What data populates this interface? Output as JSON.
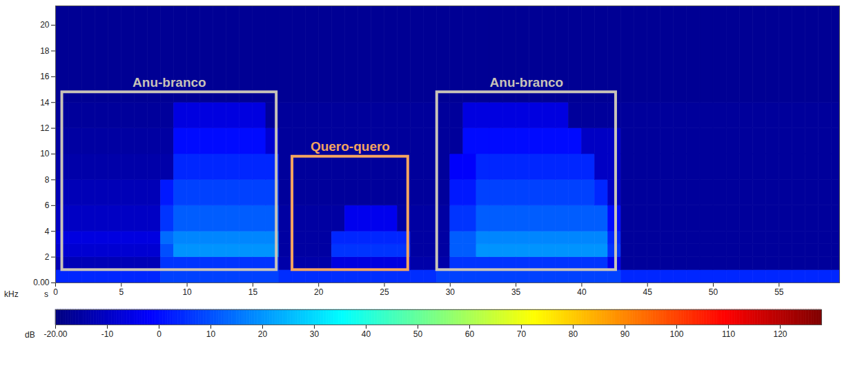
{
  "chart_data": {
    "type": "heatmap",
    "xlabel": "s",
    "ylabel": "kHz",
    "xlim": [
      0,
      59.6
    ],
    "xticks": [
      0,
      5,
      10,
      15,
      20,
      25,
      30,
      35,
      40,
      45,
      50,
      55
    ],
    "ylim": [
      0,
      21.5
    ],
    "yticks": [
      {
        "value": 0,
        "label": "0.00"
      },
      2,
      4,
      6,
      8,
      10,
      12,
      14,
      16,
      18,
      20
    ],
    "time_bins": [
      0,
      1,
      2,
      3,
      4,
      5,
      6,
      7,
      8,
      9,
      10,
      11,
      12,
      13,
      14,
      15,
      16,
      17,
      18,
      19,
      20,
      21,
      22,
      23,
      24,
      25,
      26,
      27,
      28,
      29,
      30,
      31,
      32,
      33,
      34,
      35,
      36,
      37,
      38,
      39,
      40,
      41,
      42,
      43,
      44,
      45,
      46,
      47,
      48,
      49,
      50,
      51,
      52,
      53,
      54,
      55,
      56,
      57,
      58,
      59,
      60
    ],
    "frequency_bins": [
      0,
      1,
      2,
      3,
      4,
      6,
      8,
      10,
      12,
      14,
      21.5
    ],
    "cells": [
      [
        4,
        4,
        4,
        4,
        4,
        4,
        4,
        4,
        8,
        8,
        8,
        8,
        8,
        8,
        8,
        8,
        8,
        5,
        5,
        5,
        5,
        5,
        5,
        5,
        5,
        5,
        5,
        5,
        5,
        8,
        8,
        8,
        8,
        8,
        8,
        8,
        8,
        8,
        8,
        8,
        8,
        8,
        8,
        4,
        4,
        4,
        4,
        4,
        4,
        4,
        4,
        4,
        4,
        4,
        4,
        4,
        4,
        4,
        4,
        4
      ],
      [
        -12,
        -12,
        -12,
        -12,
        -12,
        -12,
        -12,
        -12,
        6,
        6,
        6,
        6,
        6,
        6,
        6,
        6,
        6,
        -14,
        -14,
        -14,
        -14,
        -6,
        -6,
        -6,
        -6,
        -6,
        -6,
        -14,
        -14,
        -14,
        6,
        6,
        6,
        6,
        6,
        6,
        6,
        6,
        6,
        6,
        6,
        6,
        -4,
        -16,
        -16,
        -16,
        -16,
        -16,
        -16,
        -16,
        -16,
        -16,
        -16,
        -16,
        -16,
        -16,
        -16,
        -16,
        -16,
        -16
      ],
      [
        -8,
        -8,
        -8,
        -8,
        -8,
        -8,
        -8,
        -8,
        10,
        20,
        20,
        20,
        20,
        20,
        20,
        20,
        20,
        -15,
        -15,
        -15,
        -15,
        6,
        6,
        6,
        6,
        6,
        6,
        -15,
        -15,
        -15,
        12,
        12,
        20,
        20,
        20,
        20,
        20,
        20,
        20,
        20,
        20,
        20,
        6,
        -16,
        -16,
        -16,
        -16,
        -16,
        -16,
        -16,
        -16,
        -16,
        -16,
        -16,
        -16,
        -16,
        -16,
        -16,
        -16,
        -16
      ],
      [
        -6,
        -6,
        -6,
        -6,
        -6,
        -6,
        -6,
        -6,
        14,
        18,
        18,
        18,
        18,
        18,
        18,
        18,
        18,
        -15,
        -15,
        -15,
        -15,
        4,
        4,
        4,
        4,
        4,
        4,
        -15,
        -15,
        -15,
        12,
        12,
        18,
        18,
        18,
        18,
        18,
        18,
        18,
        18,
        18,
        18,
        4,
        -16,
        -16,
        -16,
        -16,
        -16,
        -16,
        -16,
        -16,
        -16,
        -16,
        -16,
        -16,
        -16,
        -16,
        -16,
        -16,
        -16
      ],
      [
        -10,
        -10,
        -10,
        -10,
        -10,
        -10,
        -10,
        -10,
        6,
        12,
        12,
        12,
        12,
        12,
        12,
        12,
        12,
        -15,
        -15,
        -15,
        -15,
        -15,
        -4,
        -4,
        -4,
        -4,
        -15,
        -15,
        -15,
        -15,
        6,
        6,
        12,
        12,
        12,
        12,
        12,
        12,
        12,
        12,
        12,
        12,
        0,
        -16,
        -16,
        -16,
        -16,
        -16,
        -16,
        -16,
        -16,
        -16,
        -16,
        -16,
        -16,
        -16,
        -16,
        -16,
        -16,
        -16
      ],
      [
        -12,
        -12,
        -12,
        -12,
        -12,
        -12,
        -12,
        -12,
        2,
        8,
        8,
        8,
        8,
        8,
        8,
        8,
        8,
        -16,
        -16,
        -16,
        -16,
        -16,
        -16,
        -16,
        -16,
        -16,
        -16,
        -16,
        -16,
        -16,
        2,
        2,
        8,
        8,
        8,
        8,
        8,
        8,
        8,
        8,
        8,
        4,
        -10,
        -16,
        -16,
        -16,
        -16,
        -16,
        -16,
        -16,
        -16,
        -16,
        -16,
        -16,
        -16,
        -16,
        -16,
        -16,
        -16,
        -16
      ],
      [
        -14,
        -14,
        -14,
        -14,
        -14,
        -14,
        -14,
        -14,
        -14,
        4,
        4,
        4,
        4,
        4,
        4,
        4,
        4,
        -16,
        -16,
        -16,
        -16,
        -16,
        -16,
        -16,
        -16,
        -16,
        -16,
        -16,
        -16,
        -16,
        -2,
        -2,
        4,
        4,
        4,
        4,
        4,
        4,
        4,
        4,
        4,
        -10,
        -10,
        -16,
        -16,
        -16,
        -16,
        -16,
        -16,
        -16,
        -16,
        -16,
        -16,
        -16,
        -16,
        -16,
        -16,
        -16,
        -16,
        -16
      ],
      [
        -15,
        -15,
        -15,
        -15,
        -15,
        -15,
        -15,
        -15,
        -15,
        0,
        0,
        0,
        0,
        0,
        0,
        0,
        -8,
        -16,
        -16,
        -16,
        -16,
        -16,
        -16,
        -16,
        -16,
        -16,
        -16,
        -16,
        -16,
        -16,
        -16,
        0,
        0,
        0,
        0,
        0,
        0,
        0,
        0,
        0,
        -10,
        -10,
        -10,
        -16,
        -16,
        -16,
        -16,
        -16,
        -16,
        -16,
        -16,
        -16,
        -16,
        -16,
        -16,
        -16,
        -16,
        -16,
        -16,
        -16
      ],
      [
        -16,
        -16,
        -16,
        -16,
        -16,
        -16,
        -16,
        -16,
        -16,
        -6,
        -6,
        -6,
        -6,
        -6,
        -6,
        -6,
        -16,
        -16,
        -16,
        -16,
        -16,
        -16,
        -16,
        -16,
        -16,
        -16,
        -16,
        -16,
        -16,
        -16,
        -16,
        -6,
        -6,
        -6,
        -6,
        -6,
        -6,
        -6,
        -6,
        -16,
        -16,
        -16,
        -16,
        -16,
        -16,
        -16,
        -16,
        -16,
        -16,
        -16,
        -16,
        -16,
        -16,
        -16,
        -16,
        -16,
        -16,
        -16,
        -16,
        -16
      ],
      [
        -17,
        -17,
        -17,
        -17,
        -17,
        -17,
        -17,
        -17,
        -17,
        -17,
        -17,
        -17,
        -17,
        -17,
        -17,
        -17,
        -17,
        -17,
        -17,
        -17,
        -17,
        -17,
        -17,
        -17,
        -17,
        -17,
        -17,
        -17,
        -17,
        -17,
        -17,
        -17,
        -17,
        -17,
        -17,
        -17,
        -17,
        -17,
        -17,
        -17,
        -17,
        -17,
        -17,
        -17,
        -17,
        -17,
        -17,
        -17,
        -17,
        -17,
        -17,
        -17,
        -17,
        -17,
        -17,
        -17,
        -17,
        -17,
        -17,
        -17
      ]
    ],
    "colorbar": {
      "label": "dB",
      "range": [
        -20,
        128
      ],
      "ticks": [
        {
          "value": -20,
          "label": "-20.00"
        },
        -10,
        0,
        10,
        20,
        30,
        40,
        50,
        60,
        70,
        80,
        90,
        100,
        110,
        120
      ]
    },
    "annotations": [
      {
        "text": "Anu-branco",
        "x": [
          0.5,
          16.8
        ],
        "y": [
          1,
          14.8
        ],
        "color": "#c8c3b8"
      },
      {
        "text": "Quero-quero",
        "x": [
          18,
          26.8
        ],
        "y": [
          1,
          9.8
        ],
        "color": "#f4a460"
      },
      {
        "text": "Anu-branco",
        "x": [
          29,
          42.6
        ],
        "y": [
          1,
          14.8
        ],
        "color": "#c8c3b8"
      }
    ]
  }
}
